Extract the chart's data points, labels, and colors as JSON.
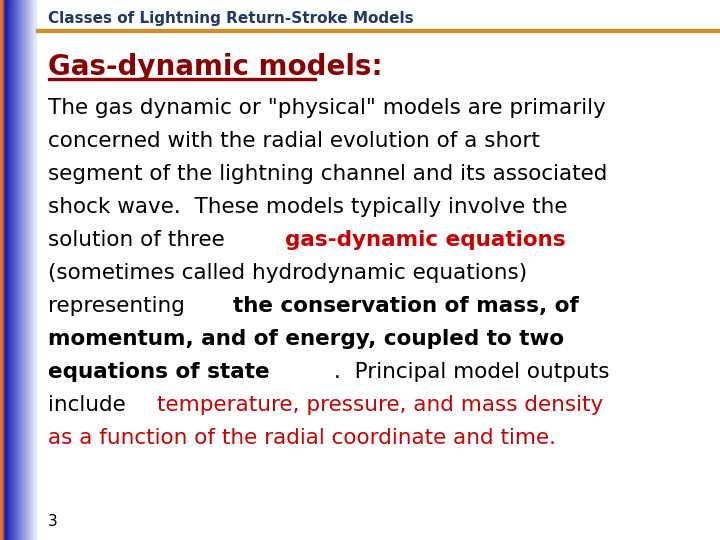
{
  "title": "Classes of Lightning Return-Stroke Models",
  "title_color": "#1F3864",
  "title_fontsize": 11,
  "heading": "Gas-dynamic models:",
  "heading_color": "#8B0000",
  "heading_fontsize": 20,
  "bg_color": "#FFFFFF",
  "top_line_color": "#C8922A",
  "slide_number": "3",
  "body_lines": [
    {
      "parts": [
        {
          "text": "The gas dynamic or \"physical\" models are primarily",
          "bold": false,
          "color": "#000000"
        }
      ]
    },
    {
      "parts": [
        {
          "text": "concerned with the radial evolution of a short",
          "bold": false,
          "color": "#000000"
        }
      ]
    },
    {
      "parts": [
        {
          "text": "segment of the lightning channel and its associated",
          "bold": false,
          "color": "#000000"
        }
      ]
    },
    {
      "parts": [
        {
          "text": "shock wave.  These models typically involve the",
          "bold": false,
          "color": "#000000"
        }
      ]
    },
    {
      "parts": [
        {
          "text": "solution of three ",
          "bold": false,
          "color": "#000000"
        },
        {
          "text": "gas-dynamic equations",
          "bold": true,
          "color": "#CC0000"
        }
      ]
    },
    {
      "parts": [
        {
          "text": "(sometimes called hydrodynamic equations)",
          "bold": false,
          "color": "#000000"
        }
      ]
    },
    {
      "parts": [
        {
          "text": "representing ",
          "bold": false,
          "color": "#000000"
        },
        {
          "text": "the conservation of mass, of",
          "bold": true,
          "color": "#000000"
        }
      ]
    },
    {
      "parts": [
        {
          "text": "momentum, and of energy, coupled to two",
          "bold": true,
          "color": "#000000"
        }
      ]
    },
    {
      "parts": [
        {
          "text": "equations of state",
          "bold": true,
          "color": "#000000"
        },
        {
          "text": ".  Principal model outputs",
          "bold": false,
          "color": "#000000"
        }
      ]
    },
    {
      "parts": [
        {
          "text": "include ",
          "bold": false,
          "color": "#000000"
        },
        {
          "text": "temperature, pressure, and mass density",
          "bold": false,
          "color": "#CC0000"
        }
      ]
    },
    {
      "parts": [
        {
          "text": "as a function of the radial coordinate and time.",
          "bold": false,
          "color": "#CC0000"
        }
      ]
    }
  ],
  "body_fontsize": 15.5
}
